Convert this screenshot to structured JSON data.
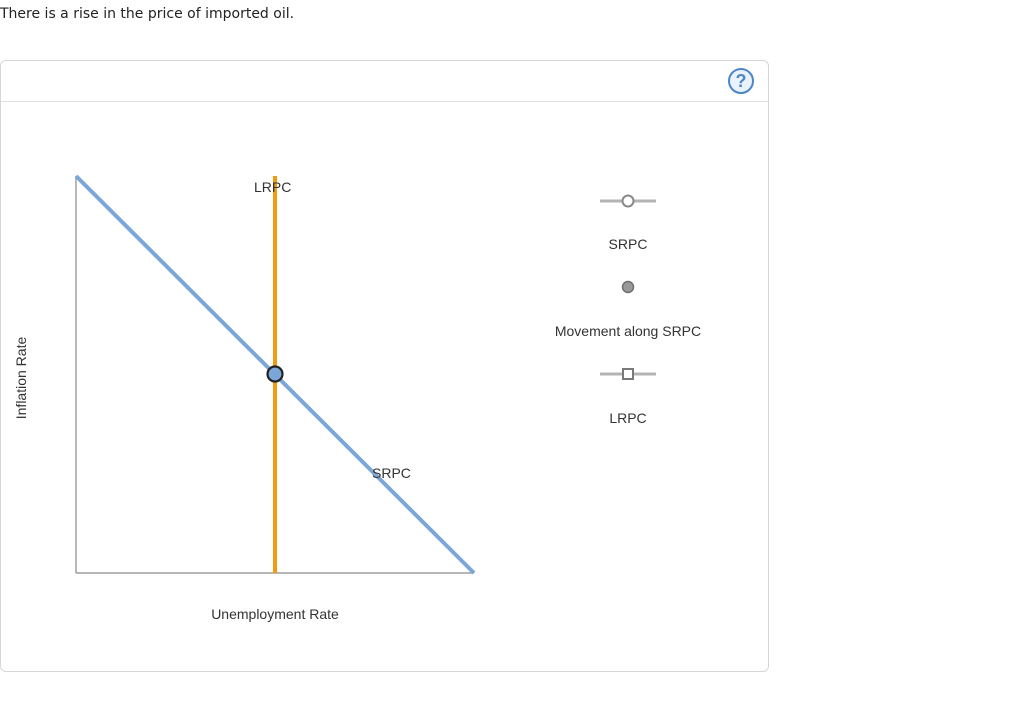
{
  "question": {
    "text": "There is a rise in the price of imported oil."
  },
  "panel": {
    "help_symbol": "?"
  },
  "graph": {
    "y_axis_label": "Inflation Rate",
    "x_axis_label": "Unemployment Rate",
    "curves": {
      "lrpc_label": "LRPC",
      "srpc_label": "SRPC"
    },
    "colors": {
      "srpc": "#7ba7d8",
      "lrpc": "#f39a13",
      "axis": "#8a8a8a"
    }
  },
  "toolbox": {
    "items": [
      {
        "label": "SRPC",
        "icon": "line-circle-icon"
      },
      {
        "label": "Movement along SRPC",
        "icon": "point-icon"
      },
      {
        "label": "LRPC",
        "icon": "line-square-icon"
      }
    ]
  }
}
